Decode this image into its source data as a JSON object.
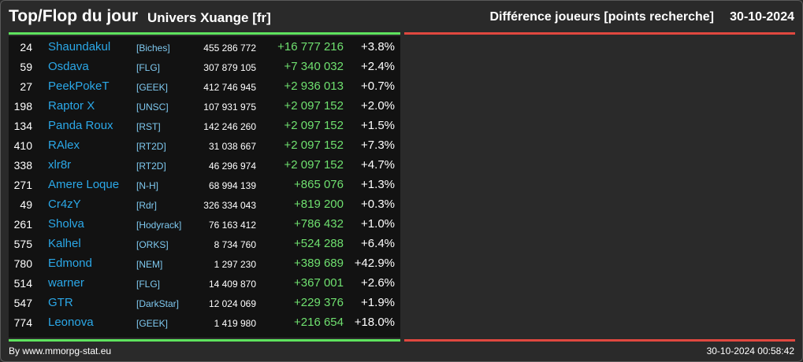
{
  "header": {
    "title": "Top/Flop du jour",
    "universe": "Univers Xuange [fr]",
    "metric": "Différence joueurs [points recherche]",
    "date": "30-10-2024"
  },
  "colors": {
    "gain_bar": "#5ee35e",
    "loss_bar": "#e0483f",
    "player_name": "#2ba8e8",
    "alliance": "#7fc9f0",
    "gain_value": "#6fe06f"
  },
  "top": [
    {
      "rank": "24",
      "name": "Shaundakul",
      "alliance": "[Biches]",
      "points": "455 286 772",
      "diff": "+16 777 216",
      "pct": "+3.8%"
    },
    {
      "rank": "59",
      "name": "Osdava",
      "alliance": "[FLG]",
      "points": "307 879 105",
      "diff": "+7 340 032",
      "pct": "+2.4%"
    },
    {
      "rank": "27",
      "name": "PeekPokeT",
      "alliance": "[GEEK]",
      "points": "412 746 945",
      "diff": "+2 936 013",
      "pct": "+0.7%"
    },
    {
      "rank": "198",
      "name": "Raptor X",
      "alliance": "[UNSC]",
      "points": "107 931 975",
      "diff": "+2 097 152",
      "pct": "+2.0%"
    },
    {
      "rank": "134",
      "name": "Panda Roux",
      "alliance": "[RST]",
      "points": "142 246 260",
      "diff": "+2 097 152",
      "pct": "+1.5%"
    },
    {
      "rank": "410",
      "name": "RAlex",
      "alliance": "[RT2D]",
      "points": "31 038 667",
      "diff": "+2 097 152",
      "pct": "+7.3%"
    },
    {
      "rank": "338",
      "name": "xlr8r",
      "alliance": "[RT2D]",
      "points": "46 296 974",
      "diff": "+2 097 152",
      "pct": "+4.7%"
    },
    {
      "rank": "271",
      "name": "Amere Loque",
      "alliance": "[N-H]",
      "points": "68 994 139",
      "diff": "+865 076",
      "pct": "+1.3%"
    },
    {
      "rank": "49",
      "name": "Cr4zY",
      "alliance": "[Rdr]",
      "points": "326 334 043",
      "diff": "+819 200",
      "pct": "+0.3%"
    },
    {
      "rank": "261",
      "name": "Sholva",
      "alliance": "[Hodyrack]",
      "points": "76 163 412",
      "diff": "+786 432",
      "pct": "+1.0%"
    },
    {
      "rank": "575",
      "name": "Kalhel",
      "alliance": "[ORKS]",
      "points": "8 734 760",
      "diff": "+524 288",
      "pct": "+6.4%"
    },
    {
      "rank": "780",
      "name": "Edmond",
      "alliance": "[NEM]",
      "points": "1 297 230",
      "diff": "+389 689",
      "pct": "+42.9%"
    },
    {
      "rank": "514",
      "name": "warner",
      "alliance": "[FLG]",
      "points": "14 409 870",
      "diff": "+367 001",
      "pct": "+2.6%"
    },
    {
      "rank": "547",
      "name": "GTR",
      "alliance": "[DarkStar]",
      "points": "12 024 069",
      "diff": "+229 376",
      "pct": "+1.9%"
    },
    {
      "rank": "774",
      "name": "Leonova",
      "alliance": "[GEEK]",
      "points": "1 419 980",
      "diff": "+216 654",
      "pct": "+18.0%"
    }
  ],
  "footer": {
    "credit": "By www.mmorpg-stat.eu",
    "timestamp": "30-10-2024 00:58:42"
  }
}
